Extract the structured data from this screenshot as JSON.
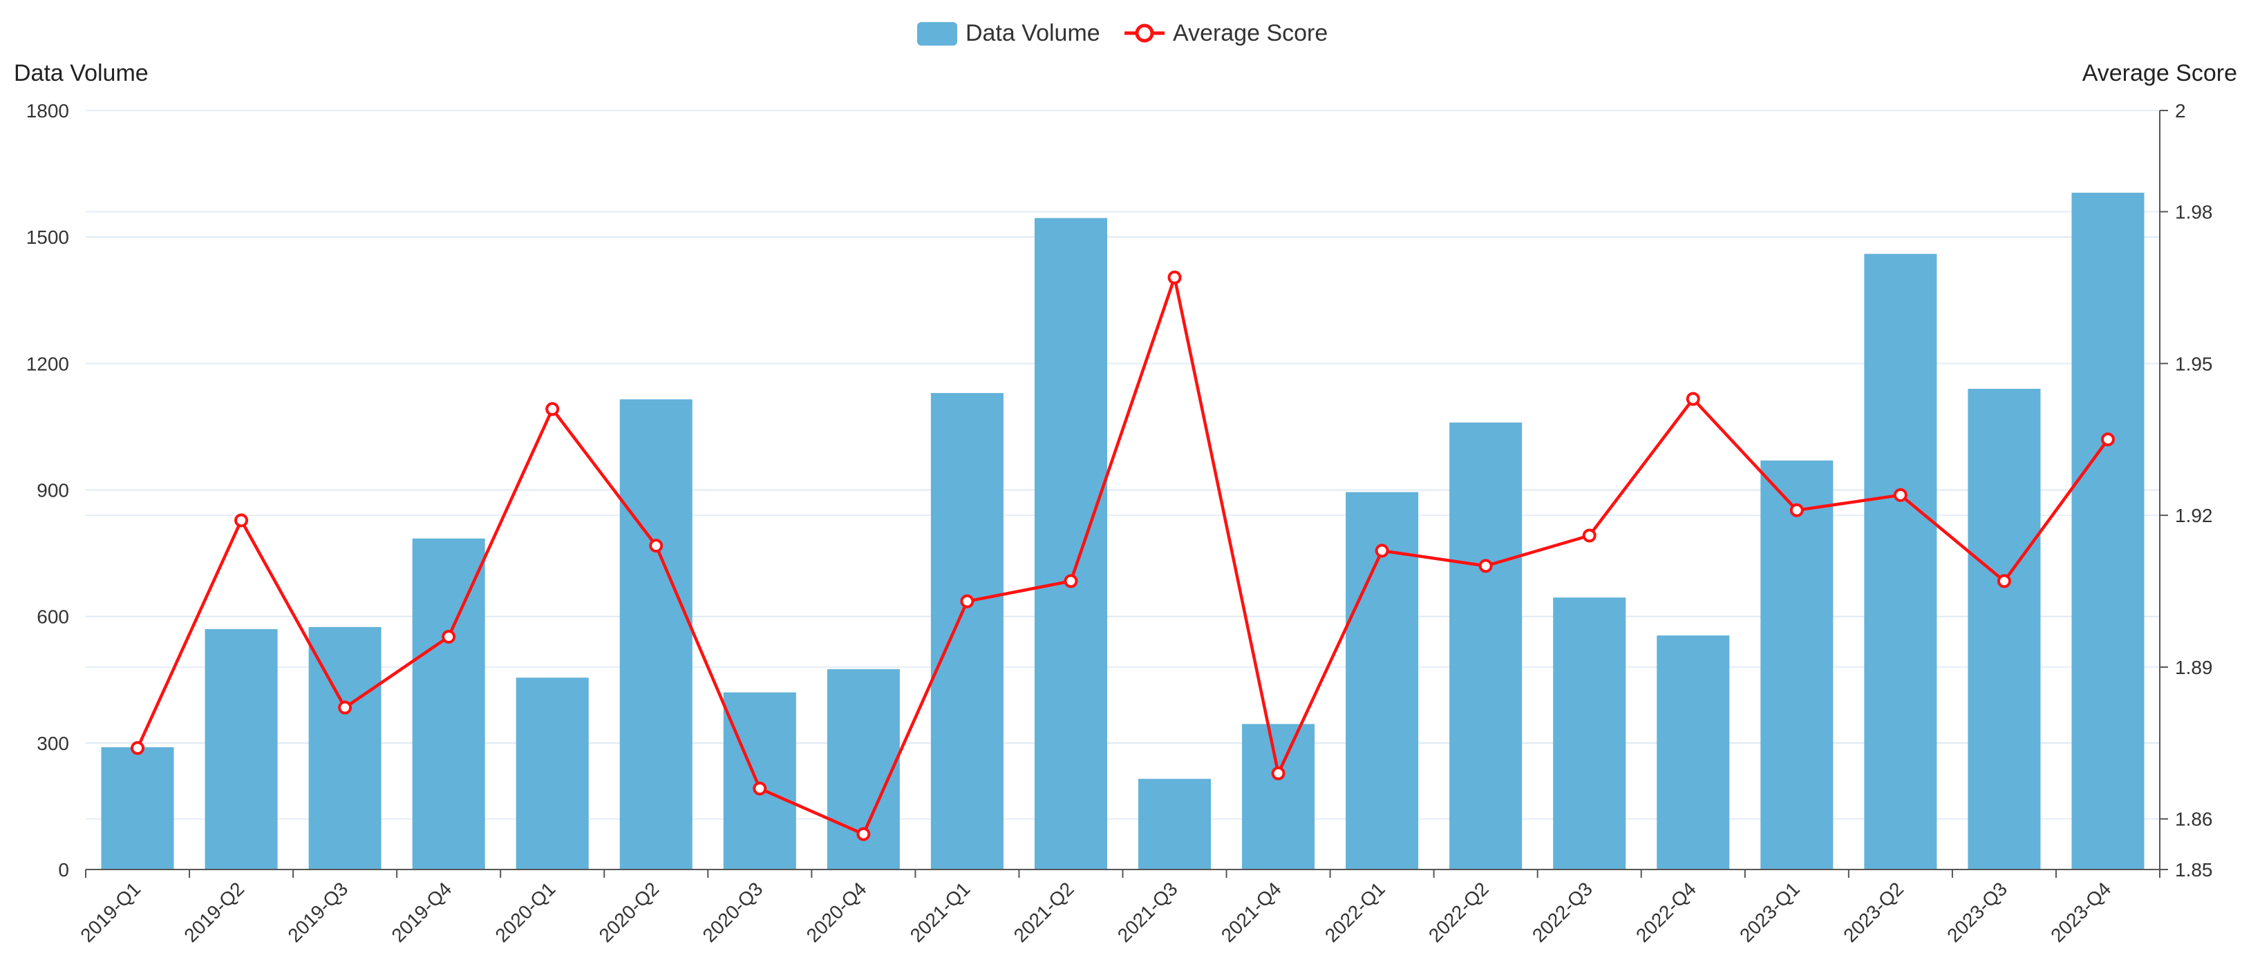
{
  "chart_data": {
    "type": "bar",
    "categories": [
      "2019-Q1",
      "2019-Q2",
      "2019-Q3",
      "2019-Q4",
      "2020-Q1",
      "2020-Q2",
      "2020-Q3",
      "2020-Q4",
      "2021-Q1",
      "2021-Q2",
      "2021-Q3",
      "2021-Q4",
      "2022-Q1",
      "2022-Q2",
      "2022-Q3",
      "2022-Q4",
      "2023-Q1",
      "2023-Q2",
      "2023-Q3",
      "2023-Q4"
    ],
    "series": [
      {
        "name": "Data Volume",
        "type": "bar",
        "axis": "left",
        "color": "#63b2d9",
        "values": [
          290,
          570,
          575,
          785,
          455,
          1115,
          420,
          475,
          1130,
          1545,
          215,
          345,
          895,
          1060,
          645,
          555,
          970,
          1460,
          1140,
          1605
        ]
      },
      {
        "name": "Average Score",
        "type": "line",
        "axis": "right",
        "color": "#ff1111",
        "values": [
          1.874,
          1.919,
          1.882,
          1.896,
          1.941,
          1.914,
          1.866,
          1.857,
          1.903,
          1.907,
          1.967,
          1.869,
          1.913,
          1.91,
          1.916,
          1.943,
          1.921,
          1.924,
          1.907,
          1.935
        ]
      }
    ],
    "ylabel_left": "Data Volume",
    "ylabel_right": "Average Score",
    "ylim_left": [
      0,
      1800
    ],
    "ylim_right": [
      1.85,
      2
    ],
    "yticks_left": [
      "0",
      "300",
      "600",
      "900",
      "1200",
      "1500",
      "1800"
    ],
    "yticks_right": [
      "1.85",
      "1.86",
      "1.89",
      "1.92",
      "1.95",
      "1.98",
      "2"
    ],
    "legend_position": "top-center",
    "grid": true
  }
}
